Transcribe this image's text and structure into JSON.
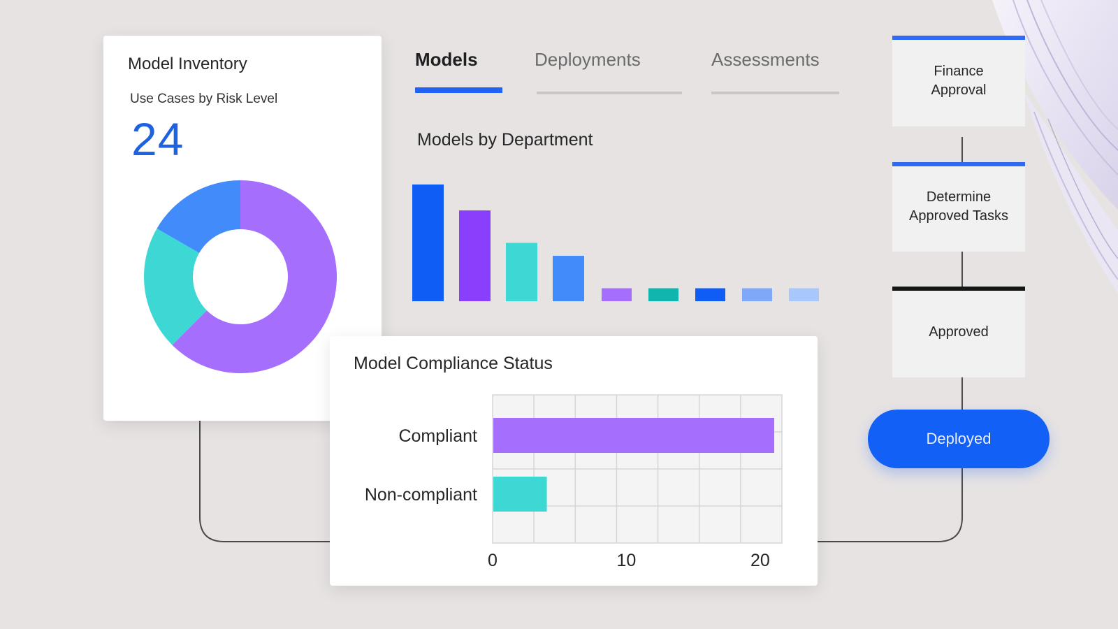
{
  "inventory": {
    "title": "Model Inventory",
    "subtitle": "Use Cases by Risk Level",
    "count": "24",
    "donut": [
      {
        "value": 15,
        "color": "#a56efc"
      },
      {
        "value": 5,
        "color": "#3ed8d4"
      },
      {
        "value": 4,
        "color": "#418bfa"
      }
    ]
  },
  "tabs": [
    {
      "label": "Models",
      "active": true
    },
    {
      "label": "Deployments",
      "active": false
    },
    {
      "label": "Assessments",
      "active": false
    }
  ],
  "department_chart": {
    "title": "Models by Department",
    "values": [
      9,
      7,
      4.5,
      3.5,
      1,
      1,
      1,
      1,
      1
    ],
    "colors": [
      "#0f5df5",
      "#8a3ffc",
      "#3ed8d4",
      "#418bfa",
      "#a56efc",
      "#12b5ad",
      "#0f5df5",
      "#7fa9f8",
      "#a8c8fb"
    ]
  },
  "compliance": {
    "title": "Model Compliance Status",
    "chart_data": {
      "type": "bar",
      "orientation": "horizontal",
      "categories": [
        "Compliant",
        "Non-compliant"
      ],
      "values": [
        21,
        4
      ],
      "colors": [
        "#a56efc",
        "#3ed8d4"
      ],
      "xlim": [
        0,
        21
      ],
      "x_ticks": [
        0,
        10,
        20
      ],
      "grid": true
    }
  },
  "workflow": {
    "steps": [
      {
        "label": "Finance Approval"
      },
      {
        "label": "Determine Approved Tasks"
      },
      {
        "label": "Approved"
      }
    ],
    "final_label": "Deployed"
  },
  "colors": {
    "background": "#e7e3e3",
    "accent": "#1260f5"
  }
}
